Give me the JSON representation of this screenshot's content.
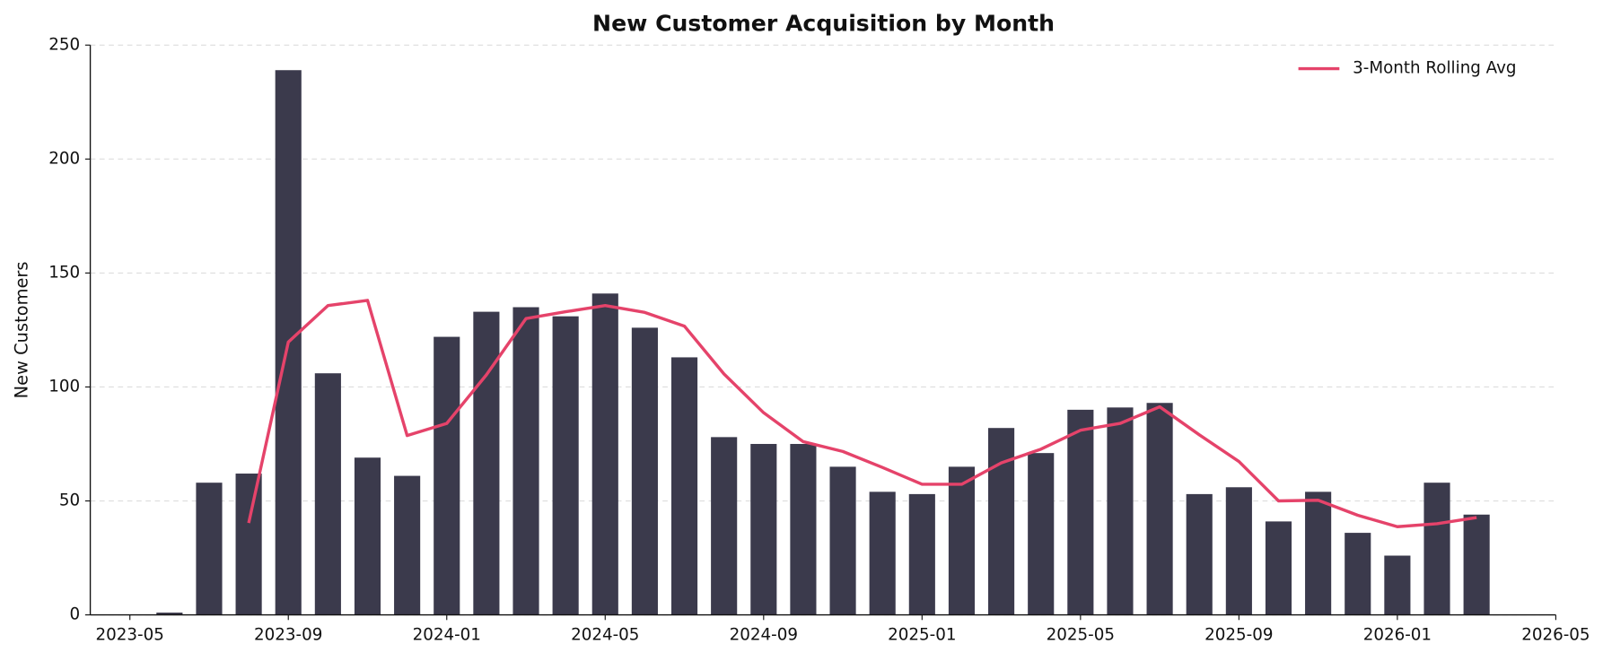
{
  "chart_data": {
    "type": "bar",
    "title": "New Customer Acquisition by Month",
    "y_label": "New Customers",
    "x": [
      "2023-06",
      "2023-07",
      "2023-08",
      "2023-09",
      "2023-10",
      "2023-11",
      "2023-12",
      "2024-01",
      "2024-02",
      "2024-03",
      "2024-04",
      "2024-05",
      "2024-06",
      "2024-07",
      "2024-08",
      "2024-09",
      "2024-10",
      "2024-11",
      "2024-12",
      "2025-01",
      "2025-02",
      "2025-03",
      "2025-04",
      "2025-05",
      "2025-06",
      "2025-07",
      "2025-08",
      "2025-09",
      "2025-10",
      "2025-11",
      "2025-12",
      "2026-01",
      "2026-02",
      "2026-03"
    ],
    "series": [
      {
        "name": null,
        "type": "bar",
        "color": "#3b3a4c",
        "values": [
          1,
          58,
          62,
          239,
          106,
          69,
          61,
          122,
          133,
          135,
          131,
          141,
          126,
          113,
          78,
          75,
          75,
          65,
          54,
          53,
          65,
          82,
          71,
          90,
          91,
          93,
          53,
          56,
          41,
          54,
          36,
          26,
          58,
          44
        ]
      },
      {
        "name": "3-Month Rolling Avg",
        "type": "line",
        "color": "#e5436a",
        "values": [
          null,
          null,
          40.3,
          119.7,
          135.7,
          138.0,
          78.7,
          84.0,
          105.3,
          130.0,
          133.0,
          135.7,
          132.7,
          126.7,
          105.7,
          88.7,
          76.0,
          71.7,
          64.7,
          57.3,
          57.3,
          66.7,
          72.7,
          81.0,
          84.0,
          91.3,
          79.0,
          67.3,
          50.0,
          50.3,
          43.7,
          38.7,
          40.0,
          42.7
        ]
      }
    ],
    "xlim": [
      "2023-04",
      "2026-05"
    ],
    "xticks": [
      "2023-05",
      "2023-09",
      "2024-01",
      "2024-05",
      "2024-09",
      "2025-01",
      "2025-05",
      "2025-09",
      "2026-01",
      "2026-05"
    ],
    "ylim": [
      0,
      250
    ],
    "yticks": [
      0,
      50,
      100,
      150,
      200,
      250
    ],
    "grid": true,
    "legend": "upper right"
  }
}
